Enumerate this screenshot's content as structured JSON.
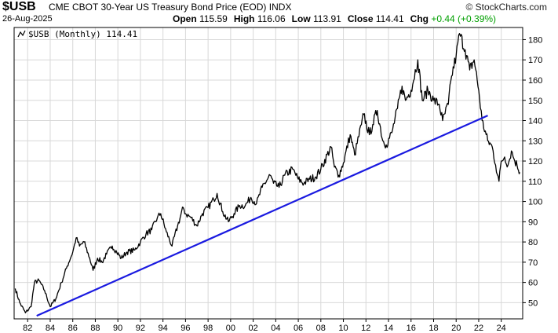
{
  "header": {
    "symbol": "$USB",
    "description": "CME CBOT 30-Year US Treasury Bond Price (EOD)",
    "exchange": "INDX",
    "date": "26-Aug-2025",
    "brand": "© StockCharts.com",
    "open_label": "Open",
    "open": "115.59",
    "high_label": "High",
    "high": "116.06",
    "low_label": "Low",
    "low": "113.91",
    "close_label": "Close",
    "close": "114.41",
    "chg_label": "Chg",
    "chg": "+0.44 (+0.39%)"
  },
  "colors": {
    "price": "#000000",
    "trendline": "#1a1ae0",
    "grid": "#d8d8d8",
    "change_positive": "#00a000"
  },
  "chart_data": {
    "type": "line",
    "legend": "$USB (Monthly) 114.41",
    "legend_icon": "chart-line-icon",
    "title": "",
    "xlabel": "",
    "ylabel": "",
    "xlim": [
      1980.8,
      2025.9
    ],
    "ylim": [
      42,
      186
    ],
    "x_tick_labels": [
      "82",
      "84",
      "86",
      "88",
      "90",
      "92",
      "94",
      "96",
      "98",
      "00",
      "02",
      "04",
      "06",
      "08",
      "10",
      "12",
      "14",
      "16",
      "18",
      "20",
      "22",
      "24"
    ],
    "x_tick_years": [
      1982,
      1984,
      1986,
      1988,
      1990,
      1992,
      1994,
      1996,
      1998,
      2000,
      2002,
      2004,
      2006,
      2008,
      2010,
      2012,
      2014,
      2016,
      2018,
      2020,
      2022,
      2024
    ],
    "y_ticks": [
      50,
      60,
      70,
      80,
      90,
      100,
      110,
      120,
      130,
      140,
      150,
      160,
      170,
      180
    ],
    "grid": true,
    "series": [
      {
        "style": "price-line",
        "x": [
          1980.9,
          1981.3,
          1981.8,
          1982.3,
          1982.6,
          1983.0,
          1983.5,
          1984.0,
          1984.5,
          1985.0,
          1985.5,
          1986.0,
          1986.3,
          1986.6,
          1987.0,
          1987.5,
          1987.8,
          1988.2,
          1988.6,
          1989.0,
          1989.5,
          1989.9,
          1990.3,
          1990.8,
          1991.5,
          1992.0,
          1992.5,
          1993.0,
          1993.5,
          1993.8,
          1994.3,
          1994.8,
          1995.3,
          1995.8,
          1996.0,
          1996.5,
          1997.0,
          1997.5,
          1998.0,
          1998.5,
          1998.8,
          1999.3,
          1999.8,
          2000.3,
          2000.8,
          2001.3,
          2001.8,
          2002.3,
          2002.8,
          2003.5,
          2003.8,
          2004.3,
          2004.8,
          2005.5,
          2006.0,
          2006.5,
          2007.0,
          2007.5,
          2008.0,
          2008.9,
          2009.2,
          2009.6,
          2010.0,
          2010.6,
          2011.0,
          2011.6,
          2011.8,
          2012.3,
          2012.6,
          2013.0,
          2013.5,
          2013.8,
          2014.3,
          2014.8,
          2015.2,
          2015.5,
          2016.0,
          2016.6,
          2017.0,
          2017.5,
          2018.0,
          2018.5,
          2018.8,
          2019.3,
          2019.6,
          2020.0,
          2020.3,
          2020.8,
          2021.2,
          2021.6,
          2022.0,
          2022.3,
          2022.8,
          2023.2,
          2023.5,
          2023.8,
          2024.0,
          2024.3,
          2024.6,
          2024.9,
          2025.2,
          2025.4,
          2025.65
        ],
        "y": [
          57,
          50,
          45,
          48,
          60,
          61,
          56,
          48,
          52,
          60,
          68,
          75,
          82,
          78,
          80,
          72,
          66,
          72,
          70,
          74,
          78,
          75,
          72,
          75,
          76,
          80,
          84,
          86,
          92,
          94,
          85,
          78,
          88,
          97,
          94,
          92,
          88,
          94,
          97,
          101,
          104,
          95,
          90,
          94,
          98,
          98,
          102,
          99,
          107,
          113,
          109,
          107,
          113,
          116,
          111,
          109,
          111,
          112,
          116,
          127,
          117,
          113,
          119,
          133,
          123,
          138,
          143,
          133,
          138,
          145,
          130,
          128,
          134,
          146,
          157,
          150,
          155,
          170,
          150,
          155,
          150,
          148,
          140,
          148,
          162,
          172,
          183,
          175,
          165,
          170,
          155,
          140,
          130,
          127,
          118,
          110,
          120,
          122,
          118,
          125,
          120,
          118,
          114.41
        ]
      },
      {
        "style": "trendline",
        "x": [
          1982.8,
          2022.8
        ],
        "y": [
          43.5,
          142.5
        ]
      }
    ]
  }
}
